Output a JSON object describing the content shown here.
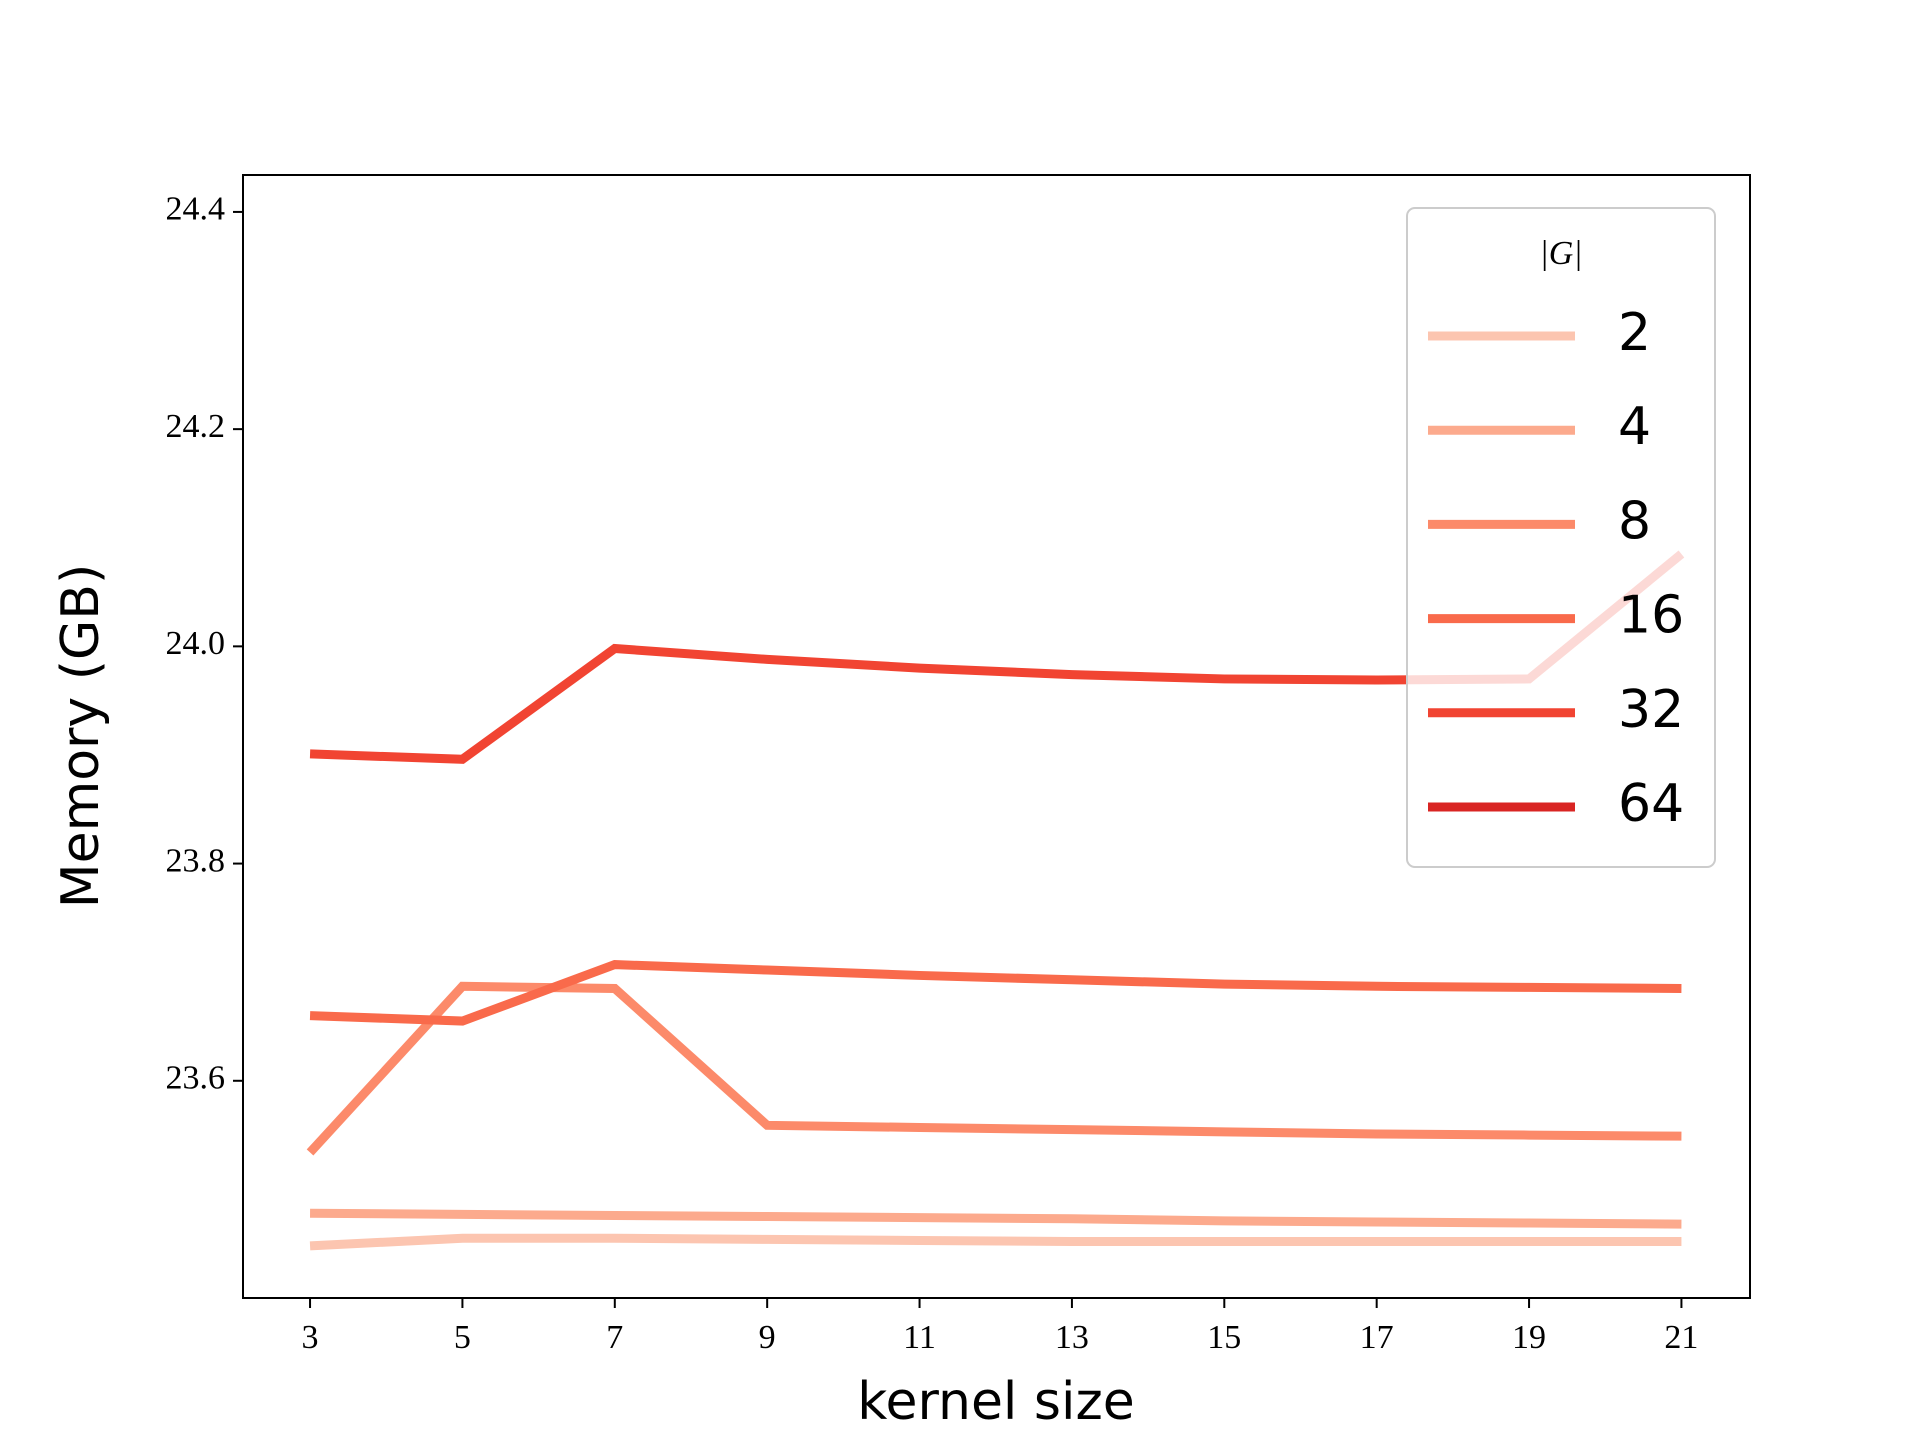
{
  "chart_data": {
    "type": "line",
    "x_label": "kernel size",
    "y_label": "Memory (GB)",
    "x": [
      3,
      5,
      7,
      9,
      11,
      13,
      15,
      17,
      19,
      21
    ],
    "xlim": [
      2.12,
      21.9
    ],
    "xticks": [
      3,
      5,
      7,
      9,
      11,
      13,
      15,
      17,
      19,
      21
    ],
    "ylim": [
      23.4,
      24.434
    ],
    "yticks": [
      23.6,
      23.8,
      {
        "value": 24,
        "label": "24.0"
      },
      24.2,
      24.4
    ],
    "legend_title": "|G|",
    "legend": "upper right",
    "series": [
      {
        "name": "2",
        "color": "#fcc5b0",
        "values": [
          23.448,
          23.455,
          23.455,
          23.454,
          23.453,
          23.452,
          23.452,
          23.452,
          23.452,
          23.452
        ]
      },
      {
        "name": "4",
        "color": "#fcaa8d",
        "values": [
          23.478,
          23.477,
          23.476,
          23.475,
          23.474,
          23.473,
          23.471,
          23.47,
          23.469,
          23.468
        ]
      },
      {
        "name": "8",
        "color": "#fc8a6a",
        "values": [
          23.534,
          23.687,
          23.685,
          23.559,
          23.557,
          23.555,
          23.553,
          23.551,
          23.55,
          23.549
        ]
      },
      {
        "name": "16",
        "color": "#f96a4b",
        "values": [
          23.66,
          23.655,
          23.707,
          23.702,
          23.697,
          23.693,
          23.689,
          23.687,
          23.686,
          23.685
        ]
      },
      {
        "name": "32",
        "color": "#f14432",
        "values": [
          23.901,
          23.896,
          23.998,
          23.988,
          23.98,
          23.974,
          23.97,
          23.969,
          23.97,
          24.085
        ]
      },
      {
        "name": "64",
        "color": "#d92523",
        "values": [
          null,
          null,
          null,
          null,
          null,
          null,
          null,
          null,
          null,
          null
        ]
      }
    ]
  }
}
